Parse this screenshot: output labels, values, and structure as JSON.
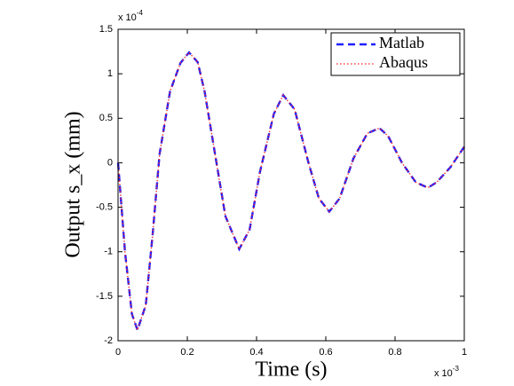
{
  "chart_data": {
    "type": "line",
    "xlabel": "Time (s)",
    "ylabel": "Output s_x (mm)",
    "x_multiplier": {
      "base": "x 10",
      "exponent": "-3"
    },
    "y_multiplier": {
      "base": "x 10",
      "exponent": "-4"
    },
    "x": [
      0,
      0.02,
      0.04,
      0.056,
      0.08,
      0.1,
      0.12,
      0.15,
      0.18,
      0.205,
      0.23,
      0.25,
      0.28,
      0.31,
      0.35,
      0.38,
      0.41,
      0.45,
      0.477,
      0.51,
      0.55,
      0.58,
      0.61,
      0.64,
      0.68,
      0.72,
      0.755,
      0.78,
      0.82,
      0.86,
      0.895,
      0.92,
      0.96,
      1.0
    ],
    "series": [
      {
        "name": "Matlab",
        "color": "#1f1fff",
        "dash": "8,5",
        "width": 2.4,
        "values": [
          0,
          -1.0,
          -1.7,
          -1.88,
          -1.6,
          -0.8,
          0.1,
          0.8,
          1.12,
          1.24,
          1.13,
          0.8,
          0.1,
          -0.6,
          -0.97,
          -0.75,
          -0.1,
          0.55,
          0.76,
          0.6,
          0.0,
          -0.4,
          -0.55,
          -0.4,
          0.05,
          0.33,
          0.39,
          0.3,
          0.0,
          -0.22,
          -0.28,
          -0.22,
          -0.05,
          0.18
        ]
      },
      {
        "name": "Abaqus",
        "color": "#ff2020",
        "dash": "1.5,2.5",
        "width": 1.3,
        "values": [
          0,
          -1.0,
          -1.7,
          -1.88,
          -1.6,
          -0.8,
          0.1,
          0.8,
          1.12,
          1.24,
          1.13,
          0.8,
          0.1,
          -0.6,
          -0.97,
          -0.75,
          -0.1,
          0.55,
          0.76,
          0.6,
          0.0,
          -0.4,
          -0.55,
          -0.4,
          0.05,
          0.33,
          0.39,
          0.3,
          0.0,
          -0.22,
          -0.28,
          -0.22,
          -0.05,
          0.18
        ]
      }
    ],
    "xlim": [
      0,
      1
    ],
    "ylim": [
      -2,
      1.5
    ],
    "xticks": [
      0,
      0.2,
      0.4,
      0.6,
      0.8,
      1
    ],
    "yticks": [
      -2,
      -1.5,
      -1,
      -0.5,
      0,
      0.5,
      1,
      1.5
    ],
    "legend": "upper right",
    "grid": false
  }
}
